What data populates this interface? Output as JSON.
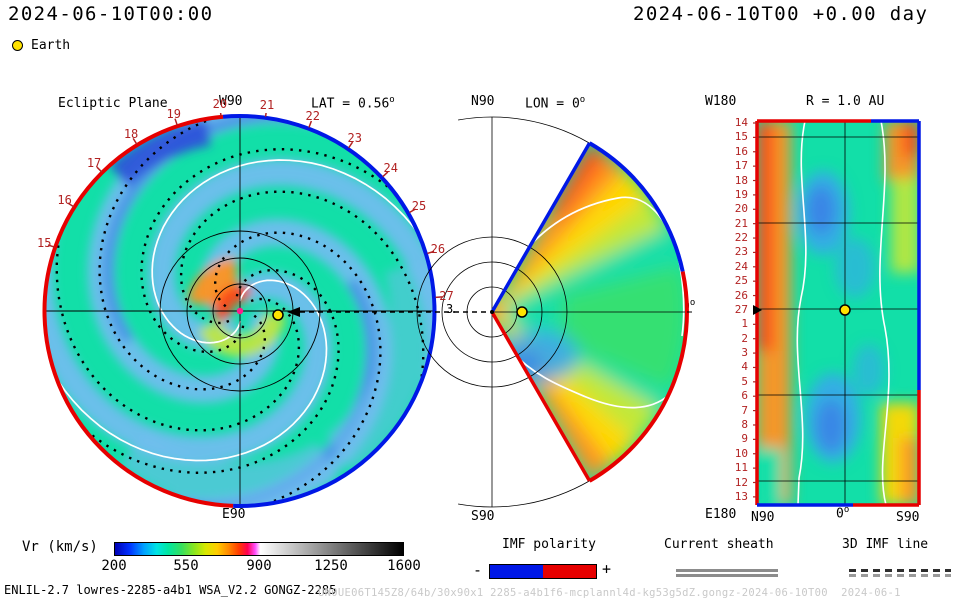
{
  "header": {
    "left_timestamp": "2024-06-10T00:00",
    "right_timestamp": "2024-06-10T00 +0.00 day",
    "earth_label": "Earth"
  },
  "ecliptic": {
    "title": "Ecliptic Plane",
    "north_label": "W90",
    "lat_label": "LAT = 0.56",
    "deg_sup": "o",
    "south_label": "E90",
    "arrow_label": "3",
    "day_ticks": [
      "15",
      "16",
      "17",
      "18",
      "19",
      "20",
      "21",
      "22",
      "23",
      "24",
      "25",
      "26",
      "27"
    ]
  },
  "meridional": {
    "north_label": "N90",
    "lon_label": "LON = 0",
    "deg_sup": "o",
    "east_label": "0",
    "south_label": "S90"
  },
  "radial": {
    "title": "R = 1.0 AU",
    "top_left_label": "W180",
    "bottom_left_label": "E180",
    "axis_n": "N90",
    "axis_0": "0",
    "deg_sup": "o",
    "axis_s": "S90",
    "day_ticks": [
      "14",
      "15",
      "16",
      "17",
      "18",
      "19",
      "20",
      "21",
      "22",
      "23",
      "24",
      "25",
      "26",
      "27",
      "1",
      "2",
      "3",
      "4",
      "5",
      "6",
      "7",
      "8",
      "9",
      "10",
      "11",
      "12",
      "13"
    ]
  },
  "colorbar": {
    "label": "Vr (km/s)",
    "min": 200,
    "max": 1600,
    "ticks": [
      "200",
      "550",
      "900",
      "1250",
      "1600"
    ],
    "stops": [
      {
        "p": 0.0,
        "c": "#0000b4"
      },
      {
        "p": 0.05,
        "c": "#0030ff"
      },
      {
        "p": 0.1,
        "c": "#00a0ff"
      },
      {
        "p": 0.145,
        "c": "#00e4e4"
      },
      {
        "p": 0.185,
        "c": "#00e6a0"
      },
      {
        "p": 0.23,
        "c": "#34df5f"
      },
      {
        "p": 0.275,
        "c": "#8ae61e"
      },
      {
        "p": 0.315,
        "c": "#d8e800"
      },
      {
        "p": 0.355,
        "c": "#ffcc00"
      },
      {
        "p": 0.395,
        "c": "#ff8800"
      },
      {
        "p": 0.43,
        "c": "#ff3c00"
      },
      {
        "p": 0.46,
        "c": "#ff0050"
      },
      {
        "p": 0.487,
        "c": "#ff50ff"
      },
      {
        "p": 0.505,
        "c": "#ffffff"
      },
      {
        "p": 1.0,
        "c": "#000000"
      }
    ]
  },
  "legends": {
    "imf_label": "IMF polarity",
    "imf_minus": "-",
    "imf_plus": "+",
    "imf_neg_color": "#0018e6",
    "imf_pos_color": "#e60000",
    "sheath_label": "Current sheath",
    "imf3d_label": "3D IMF line"
  },
  "footer": {
    "model_info": "ENLIL-2.7 lowres-2285-a4b1 WSA_V2.2 GONGZ-2285",
    "run_id": "UN0UE06T145Z8/64b/30x90x1 2285-a4b1f6-mcplannl4d-kg53g5dZ.gongz-2024-06-10T00  2024-06-1"
  },
  "colors": {
    "field_teal": "#12dfa8",
    "slow_blue": "#72bdf0",
    "slower_blue": "#3c7ce6",
    "sky_blue": "#38a6ee",
    "green": "#55e23c",
    "green_yellow": "#c2e838",
    "yellow": "#ffd800",
    "orange": "#ff9222",
    "red_orange": "#ff4012",
    "rim_blue_dark": "#2b50d8",
    "rim_negative": "#e60000",
    "rim_positive": "#0018e6",
    "tick_red": "#b22222",
    "earth_yellow": "#ffe200",
    "sun_magenta": "#ff1a8c"
  },
  "chart_data": [
    {
      "type": "heatmap",
      "name": "ecliptic-plane-vr-map",
      "title": "Ecliptic Plane",
      "projection": "polar cut through ecliptic, Sun at center, outer boundary ~2.1 AU",
      "quantity": "solar wind radial speed Vr",
      "units": "km/s",
      "value_range": [
        200,
        1600
      ],
      "ambient_speed_kms": 450,
      "slow_stream_speed_kms": 330,
      "fast_stream_speed_kms": 700,
      "earth_marker": "yellow dot on Sun-Earth line right of center, dashed arrow pointing to it",
      "day_of_month_ticks": [
        15,
        16,
        17,
        18,
        19,
        20,
        21,
        22,
        23,
        24,
        25,
        26,
        27
      ],
      "day_tick_start_angle_deg": 161,
      "day_tick_step_deg": -13.0833,
      "spiral_wrap_deg": 265,
      "slow_arm_tip_angles_deg": [
        -25,
        65,
        155,
        245
      ],
      "deep_arm_tip_angles_deg": [
        65,
        245
      ],
      "contour_tip_angles_deg": [
        0,
        178
      ],
      "imf_line_tip_angles_deg": [
        20,
        80,
        140,
        200,
        260,
        320
      ],
      "rim_polarity": "red (negative) left half from 95deg to 268deg, blue (positive) right half"
    },
    {
      "type": "heatmap",
      "name": "meridional-plane-vr-map",
      "projection": "polar wedge +/-60deg latitude at LON = 0",
      "quantity": "Vr",
      "units": "km/s",
      "value_range": [
        200,
        1600
      ],
      "sectors": [
        {
          "a1": 60,
          "a2": 47,
          "r0": 0,
          "r1": 195,
          "color": "orange",
          "op": 1
        },
        {
          "a1": 60,
          "a2": 54,
          "r0": 115,
          "r1": 195,
          "color": "red_orange",
          "op": 0.9
        },
        {
          "a1": 47,
          "a2": 36,
          "r0": 0,
          "r1": 195,
          "color": "yellow",
          "op": 1
        },
        {
          "a1": 36,
          "a2": 26,
          "r0": 0,
          "r1": 195,
          "color": "green_yellow",
          "op": 1
        },
        {
          "a1": 26,
          "a2": -30,
          "r0": 0,
          "r1": 195,
          "color": "field_teal",
          "op": 1
        },
        {
          "a1": 14,
          "a2": -24,
          "r0": 70,
          "r1": 195,
          "color": "green",
          "op": 0.5
        },
        {
          "a1": -30,
          "a2": -42,
          "r0": 0,
          "r1": 195,
          "color": "green_yellow",
          "op": 1
        },
        {
          "a1": -42,
          "a2": -52,
          "r0": 0,
          "r1": 195,
          "color": "yellow",
          "op": 1
        },
        {
          "a1": -52,
          "a2": -60,
          "r0": 0,
          "r1": 195,
          "color": "orange",
          "op": 1
        }
      ],
      "rim_polarity": "blue (positive) northern edge and upper arc, red (negative) lower arc and southern edge"
    },
    {
      "type": "heatmap",
      "name": "constant-radius-vr-map",
      "title": "R = 1.0 AU",
      "x_axis_labels": [
        "N90",
        "0",
        "S90"
      ],
      "y_axis_day_ticks": [
        14,
        15,
        16,
        17,
        18,
        19,
        20,
        21,
        22,
        23,
        24,
        25,
        26,
        27,
        1,
        2,
        3,
        4,
        5,
        6,
        7,
        8,
        9,
        10,
        11,
        12,
        13
      ],
      "quantity": "Vr",
      "units": "km/s",
      "value_range": [
        200,
        1600
      ],
      "features": "fast orange/red streams along both longitude edges, ambient teal center with slow blue cells, Earth marked at day 27 row center"
    }
  ]
}
